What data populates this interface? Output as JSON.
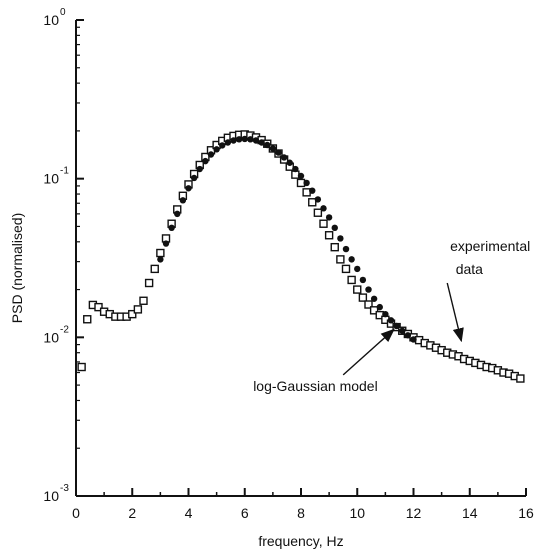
{
  "chart_data": {
    "type": "scatter",
    "title": "",
    "xlabel": "frequency, Hz",
    "ylabel": "PSD (normalised)",
    "xlim": [
      0,
      16
    ],
    "ylim": [
      0.001,
      1
    ],
    "yscale": "log",
    "grid": false,
    "x_ticks": [
      "0",
      "2",
      "4",
      "6",
      "8",
      "10",
      "12",
      "14",
      "16"
    ],
    "y_ticks": [
      {
        "base": "10",
        "exp": "0"
      },
      {
        "base": "10",
        "exp": "-1"
      },
      {
        "base": "10",
        "exp": "-2"
      },
      {
        "base": "10",
        "exp": "-3"
      }
    ],
    "series": [
      {
        "name": "experimental data",
        "marker": "open-square",
        "color": "#111111",
        "x": [
          0.2,
          0.4,
          0.6,
          0.8,
          1.0,
          1.2,
          1.4,
          1.6,
          1.8,
          2.0,
          2.2,
          2.4,
          2.6,
          2.8,
          3.0,
          3.2,
          3.4,
          3.6,
          3.8,
          4.0,
          4.2,
          4.4,
          4.6,
          4.8,
          5.0,
          5.2,
          5.4,
          5.6,
          5.8,
          6.0,
          6.2,
          6.4,
          6.6,
          6.8,
          7.0,
          7.2,
          7.4,
          7.6,
          7.8,
          8.0,
          8.2,
          8.4,
          8.6,
          8.8,
          9.0,
          9.2,
          9.4,
          9.6,
          9.8,
          10.0,
          10.2,
          10.4,
          10.6,
          10.8,
          11.0,
          11.2,
          11.4,
          11.6,
          11.8,
          12.0,
          12.2,
          12.4,
          12.6,
          12.8,
          13.0,
          13.2,
          13.4,
          13.6,
          13.8,
          14.0,
          14.2,
          14.4,
          14.6,
          14.8,
          15.0,
          15.2,
          15.4,
          15.6,
          15.8
        ],
        "y": [
          0.0065,
          0.013,
          0.016,
          0.0155,
          0.0145,
          0.014,
          0.0135,
          0.0135,
          0.0135,
          0.014,
          0.015,
          0.017,
          0.022,
          0.027,
          0.034,
          0.042,
          0.052,
          0.064,
          0.078,
          0.092,
          0.107,
          0.122,
          0.137,
          0.151,
          0.163,
          0.173,
          0.181,
          0.186,
          0.189,
          0.19,
          0.187,
          0.182,
          0.175,
          0.166,
          0.155,
          0.144,
          0.132,
          0.119,
          0.106,
          0.094,
          0.082,
          0.071,
          0.061,
          0.052,
          0.044,
          0.037,
          0.031,
          0.027,
          0.023,
          0.02,
          0.0178,
          0.0161,
          0.0148,
          0.0138,
          0.0129,
          0.0122,
          0.0116,
          0.011,
          0.0105,
          0.01,
          0.0096,
          0.0092,
          0.0089,
          0.0086,
          0.0083,
          0.008,
          0.0078,
          0.0076,
          0.0073,
          0.0071,
          0.0069,
          0.0067,
          0.0065,
          0.0064,
          0.0062,
          0.006,
          0.0059,
          0.0057,
          0.0055
        ]
      },
      {
        "name": "log-Gaussian model",
        "marker": "dot",
        "color": "#111111",
        "x": [
          3.0,
          3.2,
          3.4,
          3.6,
          3.8,
          4.0,
          4.2,
          4.4,
          4.6,
          4.8,
          5.0,
          5.2,
          5.4,
          5.6,
          5.8,
          6.0,
          6.2,
          6.4,
          6.6,
          6.8,
          7.0,
          7.2,
          7.4,
          7.6,
          7.8,
          8.0,
          8.2,
          8.4,
          8.6,
          8.8,
          9.0,
          9.2,
          9.4,
          9.6,
          9.8,
          10.0,
          10.2,
          10.4,
          10.6,
          10.8,
          11.0,
          11.2,
          11.4,
          11.6,
          11.8,
          12.0
        ],
        "y": [
          0.031,
          0.039,
          0.049,
          0.06,
          0.073,
          0.087,
          0.101,
          0.115,
          0.129,
          0.142,
          0.153,
          0.162,
          0.169,
          0.174,
          0.177,
          0.178,
          0.177,
          0.174,
          0.169,
          0.163,
          0.155,
          0.146,
          0.136,
          0.126,
          0.115,
          0.104,
          0.094,
          0.084,
          0.074,
          0.065,
          0.057,
          0.049,
          0.042,
          0.036,
          0.031,
          0.027,
          0.023,
          0.02,
          0.0175,
          0.0155,
          0.014,
          0.0128,
          0.0118,
          0.011,
          0.0103,
          0.0097
        ]
      }
    ],
    "annotations": [
      {
        "text": "experimental",
        "x": 13.3,
        "y": 0.035
      },
      {
        "text": "data",
        "x": 13.5,
        "y": 0.025
      },
      {
        "text": "log-Gaussian model",
        "x": 6.3,
        "y": 0.0046
      }
    ],
    "arrows": [
      {
        "from": [
          13.2,
          0.022
        ],
        "to": [
          13.7,
          0.0095
        ]
      },
      {
        "from": [
          9.5,
          0.0058
        ],
        "to": [
          11.3,
          0.0112
        ]
      }
    ]
  }
}
